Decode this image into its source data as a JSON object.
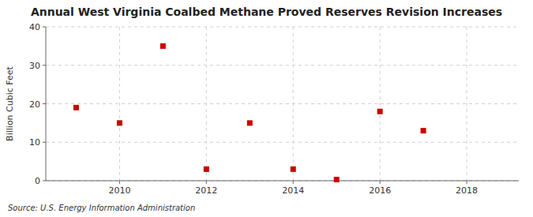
{
  "chart_data": {
    "type": "scatter",
    "title": "Annual West Virginia Coalbed Methane Proved Reserves Revision Increases",
    "ylabel": "Billion Cubic Feet",
    "source": "Source: U.S. Energy Information Administration",
    "x": [
      2009,
      2010,
      2011,
      2012,
      2013,
      2014,
      2015,
      2016,
      2017
    ],
    "values": [
      19.0,
      15.0,
      35.0,
      3.0,
      15.0,
      3.0,
      0.3,
      18.0,
      13.0
    ],
    "color": "#cc0000",
    "marker": "square",
    "xlim": [
      2008.3,
      2019.2
    ],
    "ylim": [
      0,
      40
    ],
    "xticks": [
      2010,
      2012,
      2014,
      2016,
      2018
    ],
    "yticks": [
      0,
      10,
      20,
      30,
      40
    ],
    "grid": true
  }
}
